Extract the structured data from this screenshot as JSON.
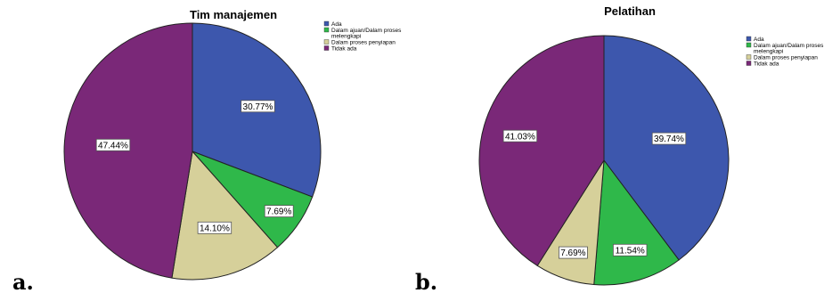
{
  "chart_data": [
    {
      "type": "pie",
      "panel": "a.",
      "title": "Tim manajemen",
      "categories": [
        "Ada",
        "Dalam ajuan/Dalam proses melengkapi",
        "Dalam proses penyiapan",
        "Tidak ada"
      ],
      "legend_labels": [
        [
          "Ada"
        ],
        [
          "Dalam ajuan/Dalam proses",
          "melengkapi"
        ],
        [
          "Dalam proses penyiapan"
        ],
        [
          "Tidak ada"
        ]
      ],
      "values": [
        30.77,
        7.69,
        14.1,
        47.44
      ],
      "data_labels": [
        "30.77%",
        "7.69%",
        "14.10%",
        "47.44%"
      ],
      "colors": [
        "#3d57ad",
        "#2fb84a",
        "#d6d09a",
        "#7a2878"
      ],
      "legend_position": "top-right"
    },
    {
      "type": "pie",
      "panel": "b.",
      "title": "Pelatihan",
      "categories": [
        "Ada",
        "Dalam ajuan/Dalam proses melengkapi",
        "Dalam proses penyiapan",
        "Tidak ada"
      ],
      "legend_labels": [
        [
          "Ada"
        ],
        [
          "Dalam ajuan/Dalam proses",
          "melengkapi"
        ],
        [
          "Dalam proses penyiapan"
        ],
        [
          "Tidak ada"
        ]
      ],
      "values": [
        39.74,
        11.54,
        7.69,
        41.03
      ],
      "data_labels": [
        "39.74%",
        "11.54%",
        "7.69%",
        "41.03%"
      ],
      "colors": [
        "#3d57ad",
        "#2fb84a",
        "#d6d09a",
        "#7a2878"
      ],
      "legend_position": "top-right"
    }
  ]
}
